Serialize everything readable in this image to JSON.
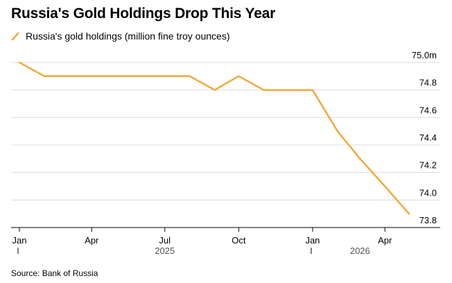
{
  "chart_data": {
    "type": "line",
    "title": "Russia's Gold Holdings Drop This Year",
    "legend_position": "top-left",
    "grid": true,
    "series": [
      {
        "name": "Russia's gold holdings (million fine troy ounces)",
        "color": "#f2a93b",
        "x": [
          "2025-01-01",
          "2025-02-01",
          "2025-03-01",
          "2025-04-01",
          "2025-05-01",
          "2025-06-01",
          "2025-07-01",
          "2025-08-01",
          "2025-09-01",
          "2025-10-01",
          "2025-11-01",
          "2025-12-01",
          "2026-01-01",
          "2026-02-01",
          "2026-03-01",
          "2026-04-01",
          "2026-05-01"
        ],
        "values": [
          75.0,
          74.9,
          74.9,
          74.9,
          74.9,
          74.9,
          74.9,
          74.9,
          74.8,
          74.9,
          74.8,
          74.8,
          74.8,
          74.5,
          74.3,
          74.1,
          73.9
        ]
      }
    ],
    "ylim": [
      73.8,
      75.0
    ],
    "yticks": [
      73.8,
      74.0,
      74.2,
      74.4,
      74.6,
      74.8,
      75.0
    ],
    "ytick_labels": [
      "73.8",
      "74.0",
      "74.2",
      "74.4",
      "74.6",
      "74.8",
      "75.0m"
    ],
    "xticks": [
      {
        "date": "2025-01-01",
        "label": "Jan"
      },
      {
        "date": "2025-04-01",
        "label": "Apr"
      },
      {
        "date": "2025-07-01",
        "label": "Jul"
      },
      {
        "date": "2025-10-01",
        "label": "Oct"
      },
      {
        "date": "2026-01-01",
        "label": "Jan"
      },
      {
        "date": "2026-04-01",
        "label": "Apr"
      }
    ],
    "year_labels": [
      {
        "date": "2025-07-01",
        "label": "2025"
      },
      {
        "date": "2026-03-01",
        "label": "2026"
      }
    ],
    "source": "Source: Bank of Russia"
  }
}
